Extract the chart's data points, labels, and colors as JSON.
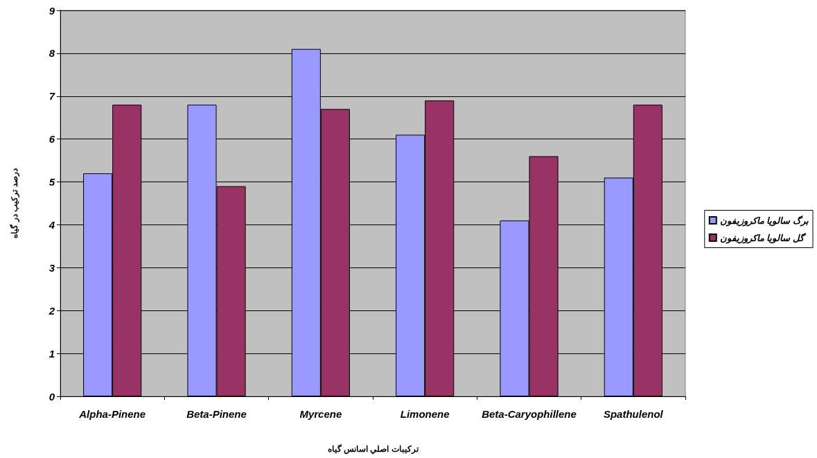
{
  "chart_data": {
    "type": "bar",
    "xlabel": "ترکیبات اصلي اسانس گياه",
    "ylabel": "درصد ترکیب در گیاه",
    "categories": [
      "Alpha-Pinene",
      "Beta-Pinene",
      "Myrcene",
      "Limonene",
      "Beta-Caryophillene",
      "Spathulenol"
    ],
    "series": [
      {
        "name": "برگ سالویا ماکروزیفون",
        "color": "#9999ff",
        "values": [
          5.2,
          6.8,
          8.1,
          6.1,
          4.1,
          5.1
        ]
      },
      {
        "name": "گل سالویا ماکروزیفون",
        "color": "#993366",
        "values": [
          6.8,
          4.9,
          6.7,
          6.9,
          5.6,
          6.8
        ]
      }
    ],
    "ylim": [
      0,
      9
    ],
    "yticks": [
      0,
      1,
      2,
      3,
      4,
      5,
      6,
      7,
      8,
      9
    ],
    "grid": "y",
    "legend": "right"
  }
}
